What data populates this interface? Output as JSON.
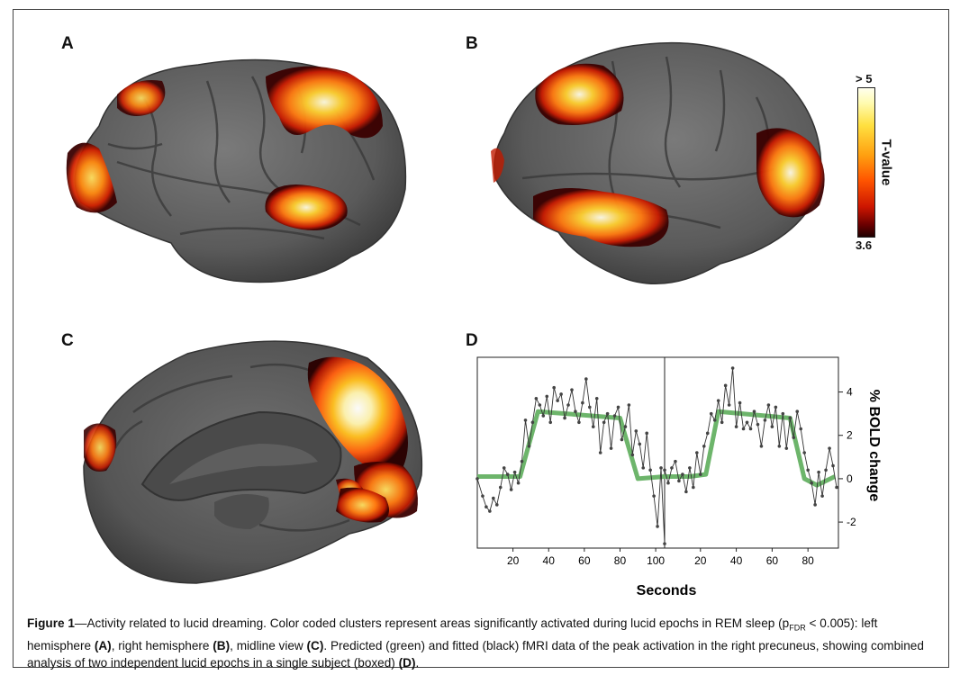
{
  "panels": {
    "a": "A",
    "b": "B",
    "c": "C",
    "d": "D"
  },
  "colorbar": {
    "title": "T-value",
    "max_label": "> 5",
    "min_label": "3.6"
  },
  "chart_data": {
    "type": "line",
    "xlabel": "Seconds",
    "ylabel": "% BOLD change",
    "yticks": [
      "4",
      "2",
      "0",
      "-2"
    ],
    "xticks_left": [
      "20",
      "40",
      "60",
      "80",
      "100"
    ],
    "xticks_right": [
      "20",
      "40",
      "60",
      "80"
    ],
    "ylim": [
      -3.2,
      5.6
    ],
    "series": [
      {
        "segment": "epoch-1",
        "color": "#6db56b",
        "predicted": [
          [
            0,
            0.1
          ],
          [
            24,
            0.1
          ],
          [
            34,
            3.1
          ],
          [
            80,
            2.8
          ],
          [
            90,
            0
          ],
          [
            105,
            0.1
          ]
        ],
        "fitted": [
          [
            0,
            0
          ],
          [
            3,
            -0.8
          ],
          [
            5,
            -1.3
          ],
          [
            7,
            -1.5
          ],
          [
            9,
            -0.9
          ],
          [
            11,
            -1.2
          ],
          [
            13,
            -0.4
          ],
          [
            15,
            0.5
          ],
          [
            17,
            0.2
          ],
          [
            19,
            -0.5
          ],
          [
            21,
            0.3
          ],
          [
            23,
            -0.2
          ],
          [
            25,
            0.8
          ],
          [
            27,
            2.7
          ],
          [
            29,
            1.5
          ],
          [
            31,
            2.6
          ],
          [
            33,
            3.7
          ],
          [
            35,
            3.4
          ],
          [
            37,
            2.9
          ],
          [
            39,
            3.8
          ],
          [
            41,
            2.6
          ],
          [
            43,
            4.2
          ],
          [
            45,
            3.6
          ],
          [
            47,
            3.9
          ],
          [
            49,
            2.8
          ],
          [
            51,
            3.4
          ],
          [
            53,
            4.1
          ],
          [
            55,
            3.1
          ],
          [
            57,
            2.6
          ],
          [
            59,
            3.5
          ],
          [
            61,
            4.6
          ],
          [
            63,
            3.3
          ],
          [
            65,
            2.4
          ],
          [
            67,
            3.7
          ],
          [
            69,
            1.2
          ],
          [
            71,
            2.6
          ],
          [
            73,
            3.0
          ],
          [
            75,
            1.4
          ],
          [
            77,
            2.9
          ],
          [
            79,
            3.3
          ],
          [
            81,
            1.8
          ],
          [
            83,
            2.4
          ],
          [
            85,
            3.4
          ],
          [
            87,
            1.1
          ],
          [
            89,
            2.2
          ],
          [
            91,
            1.6
          ],
          [
            93,
            0.5
          ],
          [
            95,
            2.1
          ],
          [
            97,
            0.4
          ],
          [
            99,
            -0.8
          ],
          [
            101,
            -2.2
          ],
          [
            103,
            0.5
          ],
          [
            105,
            -3.0
          ]
        ]
      },
      {
        "segment": "epoch-2",
        "color": "#6db56b",
        "predicted": [
          [
            0,
            0.1
          ],
          [
            14,
            0.1
          ],
          [
            23,
            0.2
          ],
          [
            30,
            3.1
          ],
          [
            70,
            2.8
          ],
          [
            78,
            0
          ],
          [
            85,
            -0.3
          ],
          [
            95,
            0.1
          ]
        ],
        "fitted": [
          [
            0,
            0.4
          ],
          [
            2,
            -0.2
          ],
          [
            4,
            0.5
          ],
          [
            6,
            0.8
          ],
          [
            8,
            -0.1
          ],
          [
            10,
            0.2
          ],
          [
            12,
            -0.6
          ],
          [
            14,
            0.5
          ],
          [
            16,
            -0.4
          ],
          [
            18,
            1.2
          ],
          [
            20,
            0.2
          ],
          [
            22,
            1.5
          ],
          [
            24,
            2.1
          ],
          [
            26,
            3.0
          ],
          [
            28,
            2.7
          ],
          [
            30,
            3.6
          ],
          [
            32,
            2.6
          ],
          [
            34,
            4.3
          ],
          [
            36,
            3.4
          ],
          [
            38,
            5.1
          ],
          [
            40,
            2.4
          ],
          [
            42,
            3.5
          ],
          [
            44,
            2.3
          ],
          [
            46,
            2.6
          ],
          [
            48,
            2.3
          ],
          [
            50,
            3.1
          ],
          [
            52,
            2.5
          ],
          [
            54,
            1.5
          ],
          [
            56,
            2.7
          ],
          [
            58,
            3.4
          ],
          [
            60,
            2.4
          ],
          [
            62,
            3.3
          ],
          [
            64,
            1.5
          ],
          [
            66,
            3.0
          ],
          [
            68,
            1.4
          ],
          [
            70,
            2.8
          ],
          [
            72,
            1.9
          ],
          [
            74,
            3.1
          ],
          [
            76,
            2.3
          ],
          [
            78,
            1.2
          ],
          [
            80,
            0.4
          ],
          [
            82,
            -0.2
          ],
          [
            84,
            -1.2
          ],
          [
            86,
            0.3
          ],
          [
            88,
            -0.8
          ],
          [
            90,
            0.4
          ],
          [
            92,
            1.4
          ],
          [
            94,
            0.6
          ],
          [
            96,
            -0.4
          ]
        ]
      }
    ]
  },
  "caption": {
    "fig_label": "Figure 1",
    "line1_a": "—Activity related to lucid dreaming. Color coded clusters represent areas significantly activated during lucid epochs in REM sleep (p",
    "line1_sub": "FDR",
    "line1_b": " < 0.005): left",
    "line2_a": "hemisphere ",
    "line2_A": "(A)",
    "line2_b": ", right hemisphere ",
    "line2_B": "(B)",
    "line2_c": ", midline view ",
    "line2_C": "(C)",
    "line2_d": ". Predicted (green) and fitted (black) fMRI data of the peak activation in the right precuneus, showing",
    "line3_a": "combined analysis of two independent lucid epochs in a single subject (boxed) ",
    "line3_D": "(D)",
    "line3_b": "."
  }
}
